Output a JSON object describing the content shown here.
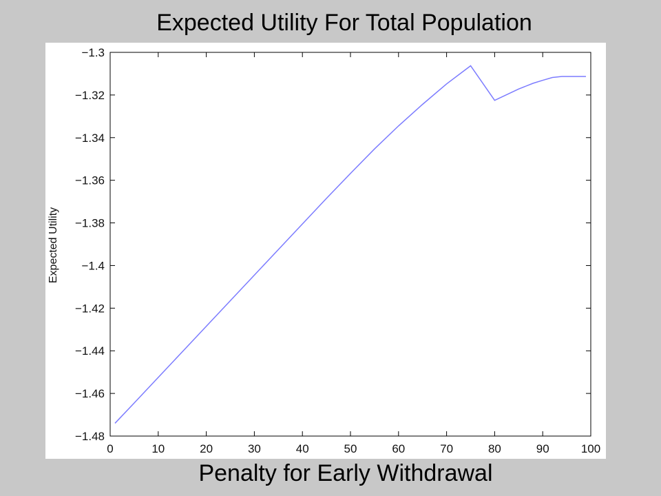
{
  "slide": {
    "title": "Expected Utility For Total Population",
    "xlabel": "Penalty for Early Withdrawal"
  },
  "chart_data": {
    "type": "line",
    "title": "",
    "xlabel": "",
    "ylabel": "Expected Utility",
    "xlim": [
      0,
      100
    ],
    "ylim": [
      -1.48,
      -1.3
    ],
    "x_ticks": [
      0,
      10,
      20,
      30,
      40,
      50,
      60,
      70,
      80,
      90,
      100
    ],
    "y_ticks": [
      -1.3,
      -1.32,
      -1.34,
      -1.36,
      -1.38,
      -1.4,
      -1.42,
      -1.44,
      -1.46,
      -1.48
    ],
    "x_tick_labels": [
      "0",
      "10",
      "20",
      "30",
      "40",
      "50",
      "60",
      "70",
      "80",
      "90",
      "100"
    ],
    "y_tick_labels": [
      "−1.3",
      "−1.32",
      "−1.34",
      "−1.36",
      "−1.38",
      "−1.4",
      "−1.42",
      "−1.44",
      "−1.46",
      "−1.48"
    ],
    "grid": false,
    "series": [
      {
        "color": "#7b7bff",
        "x": [
          1,
          5,
          10,
          15,
          20,
          25,
          30,
          35,
          40,
          45,
          50,
          55,
          60,
          65,
          70,
          75,
          80,
          85,
          88,
          90,
          92,
          94,
          96,
          99
        ],
        "y": [
          -1.474,
          -1.4645,
          -1.4525,
          -1.4405,
          -1.4285,
          -1.4165,
          -1.4045,
          -1.3925,
          -1.3805,
          -1.3685,
          -1.3568,
          -1.3453,
          -1.3345,
          -1.3244,
          -1.3148,
          -1.3063,
          -1.3225,
          -1.3172,
          -1.3145,
          -1.3131,
          -1.3118,
          -1.3113,
          -1.3113,
          -1.3113
        ]
      }
    ]
  }
}
